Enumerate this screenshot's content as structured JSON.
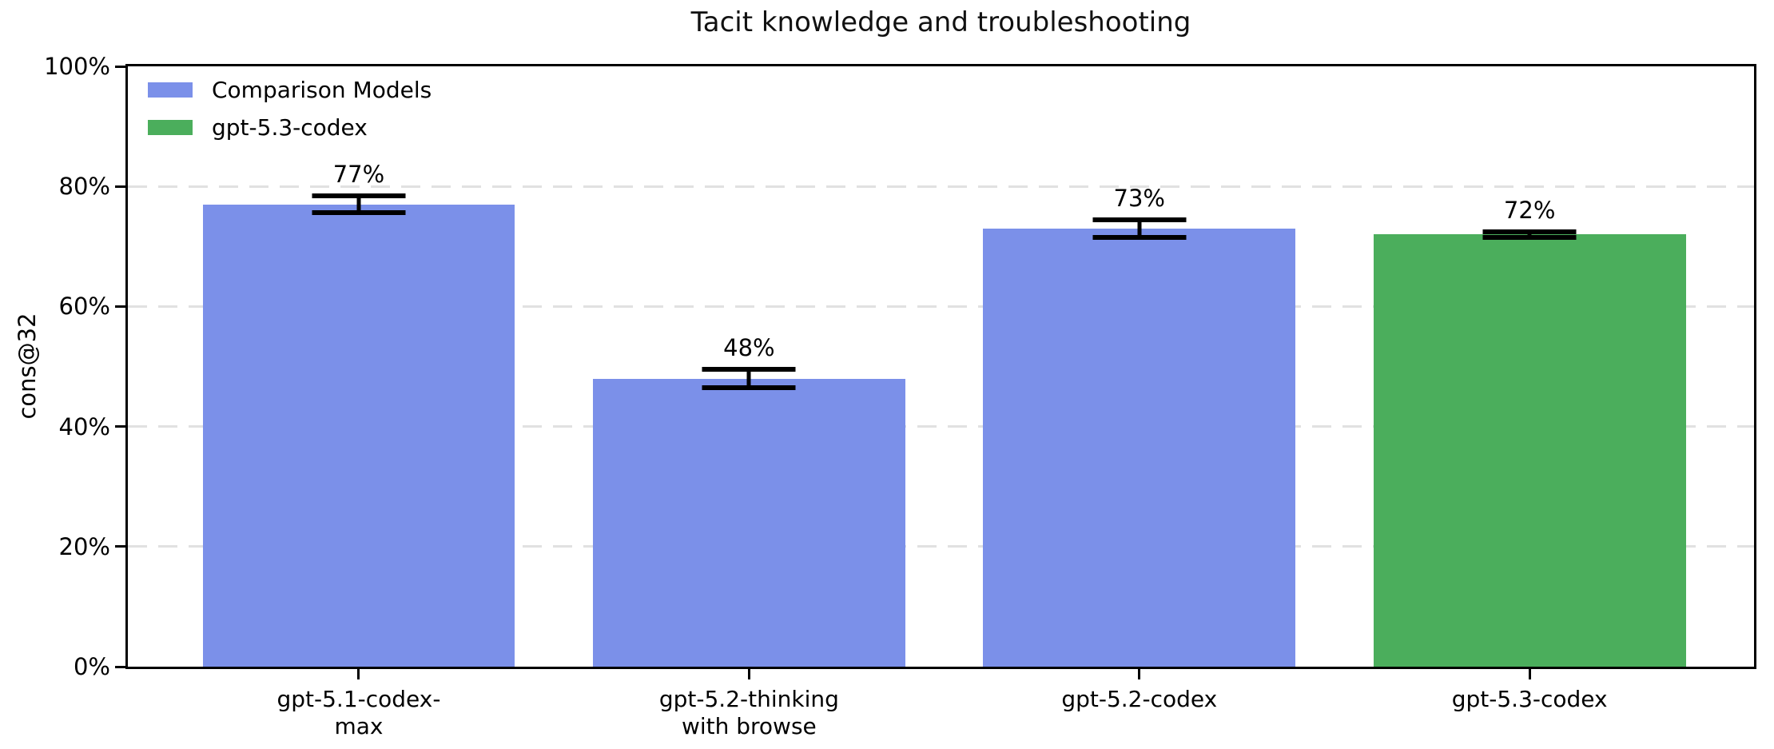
{
  "title": "Tacit knowledge and troubleshooting",
  "ylabel": "cons@32",
  "legend": [
    {
      "label": "Comparison Models",
      "color": "#7b90e9"
    },
    {
      "label": "gpt-5.3-codex",
      "color": "#4bae5c"
    }
  ],
  "colors": {
    "comparison_blue": "#7b90e9",
    "highlight_green": "#4bae5c",
    "gridline": "#e1e1e1",
    "axis": "#000000"
  },
  "chart_data": {
    "type": "bar",
    "title": "Tacit knowledge and troubleshooting",
    "xlabel": "",
    "ylabel": "cons@32",
    "ylim": [
      0,
      100
    ],
    "grid": "horizontal dashed",
    "legend_position": "upper left",
    "categories": [
      [
        "gpt-5.1-codex-",
        "max"
      ],
      [
        "gpt-5.2-thinking",
        "with browse"
      ],
      [
        "gpt-5.2-codex"
      ],
      [
        "gpt-5.3-codex"
      ]
    ],
    "values": [
      77,
      48,
      73,
      72
    ],
    "value_labels": [
      "77%",
      "48%",
      "73%",
      "72%"
    ],
    "errors": [
      1.4,
      1.5,
      1.5,
      0.5
    ],
    "bar_colors": [
      "#7b90e9",
      "#7b90e9",
      "#7b90e9",
      "#4bae5c"
    ],
    "series_of_bar": [
      "Comparison Models",
      "Comparison Models",
      "Comparison Models",
      "gpt-5.3-codex"
    ],
    "ytick_values": [
      0,
      20,
      40,
      60,
      80,
      100
    ],
    "yticks": [
      "0%",
      "20%",
      "40%",
      "60%",
      "80%",
      "100%"
    ]
  }
}
